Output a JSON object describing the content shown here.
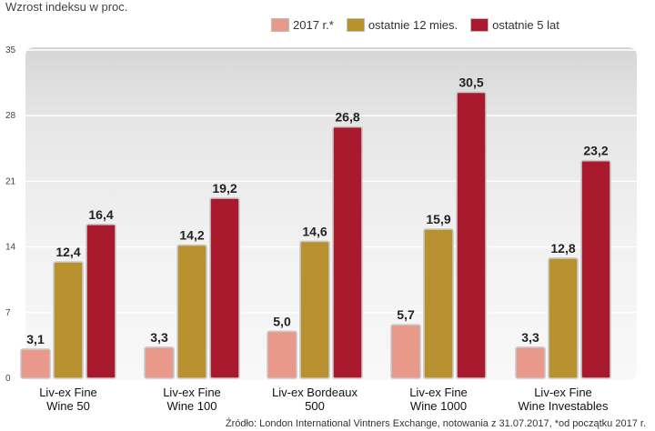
{
  "subtitle": "Wzrost indeksu w proc.",
  "source": "Źródło: London International Vintners Exchange, notowania z 31.07.2017, *od początku 2017 r.",
  "colors": {
    "series_2017": "#e8998a",
    "series_12m": "#b8922e",
    "series_5y": "#a91a2e",
    "grid": "#ffffff",
    "bar_border": "#c9c9c9"
  },
  "chart_data": {
    "type": "bar",
    "title": "Wzrost indeksu w proc.",
    "xlabel": "",
    "ylabel": "",
    "ylim": [
      0,
      35
    ],
    "yticks": [
      0,
      7,
      14,
      21,
      28,
      35
    ],
    "grid": true,
    "legend_position": "top-right",
    "categories": [
      [
        "Liv-ex Fine",
        "Wine 50"
      ],
      [
        "Liv-ex Fine",
        "Wine 100"
      ],
      [
        "Liv-ex Bordeaux",
        "500"
      ],
      [
        "Liv-ex Fine",
        "Wine 1000"
      ],
      [
        "Liv-ex Fine",
        "Wine Investables"
      ]
    ],
    "series": [
      {
        "name": "2017 r.*",
        "values": [
          3.1,
          3.3,
          5.0,
          5.7,
          3.3
        ],
        "labels": [
          "3,1",
          "3,3",
          "5,0",
          "5,7",
          "3,3"
        ]
      },
      {
        "name": "ostatnie 12 mies.",
        "values": [
          12.4,
          14.2,
          14.6,
          15.9,
          12.8
        ],
        "labels": [
          "12,4",
          "14,2",
          "14,6",
          "15,9",
          "12,8"
        ]
      },
      {
        "name": "ostatnie 5 lat",
        "values": [
          16.4,
          19.2,
          26.8,
          30.5,
          23.2
        ],
        "labels": [
          "16,4",
          "19,2",
          "26,8",
          "30,5",
          "23,2"
        ]
      }
    ]
  }
}
